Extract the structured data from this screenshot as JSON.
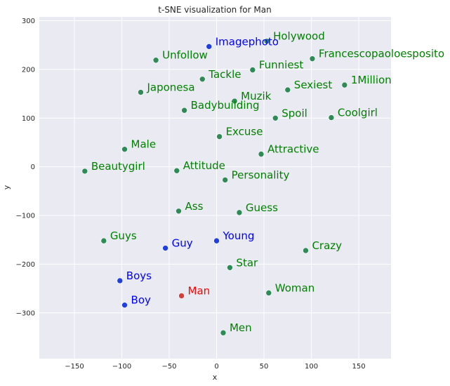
{
  "chart_data": {
    "type": "scatter",
    "title": "t-SNE visualization for Man",
    "xlabel": "x",
    "ylabel": "y",
    "xlim": [
      -187,
      184
    ],
    "ylim": [
      -394,
      308
    ],
    "xticks": [
      -150,
      -100,
      -50,
      0,
      50,
      100,
      150
    ],
    "yticks": [
      -300,
      -200,
      -100,
      0,
      100,
      200,
      300
    ],
    "grid": true,
    "colors": {
      "background": "#eaeaf2",
      "grid": "#ffffff",
      "green_point": "#2e8b57",
      "green_label": "#008000",
      "blue_point": "#1f3fe0",
      "blue_label": "#0000ff",
      "red_point": "#d43f3a",
      "red_label": "#ff0000"
    },
    "points": [
      {
        "label": "Holywood",
        "x": 53,
        "y": 258,
        "color": "green"
      },
      {
        "label": "Imagephoto",
        "x": -8,
        "y": 247,
        "color": "blue"
      },
      {
        "label": "Unfollow",
        "x": -64,
        "y": 219,
        "color": "green"
      },
      {
        "label": "Francescopaoloesposito",
        "x": 101,
        "y": 222,
        "color": "green"
      },
      {
        "label": "Funniest",
        "x": 38,
        "y": 199,
        "color": "green"
      },
      {
        "label": "Tackle",
        "x": -15,
        "y": 180,
        "color": "green"
      },
      {
        "label": "1Million",
        "x": 135,
        "y": 168,
        "color": "green"
      },
      {
        "label": "Sexiest",
        "x": 75,
        "y": 158,
        "color": "green"
      },
      {
        "label": "Japonesa",
        "x": -80,
        "y": 153,
        "color": "green"
      },
      {
        "label": "Muzik",
        "x": 19,
        "y": 135,
        "color": "green"
      },
      {
        "label": "Badybuilding",
        "x": -34,
        "y": 116,
        "color": "green"
      },
      {
        "label": "Spoil",
        "x": 62,
        "y": 100,
        "color": "green"
      },
      {
        "label": "Coolgirl",
        "x": 121,
        "y": 101,
        "color": "green"
      },
      {
        "label": "Excuse",
        "x": 3,
        "y": 62,
        "color": "green"
      },
      {
        "label": "Male",
        "x": -97,
        "y": 36,
        "color": "green"
      },
      {
        "label": "Attractive",
        "x": 47,
        "y": 26,
        "color": "green"
      },
      {
        "label": "Beautygirl",
        "x": -139,
        "y": -9,
        "color": "green"
      },
      {
        "label": "Attitude",
        "x": -42,
        "y": -8,
        "color": "green"
      },
      {
        "label": "Personality",
        "x": 9,
        "y": -27,
        "color": "green"
      },
      {
        "label": "Ass",
        "x": -40,
        "y": -91,
        "color": "green"
      },
      {
        "label": "Guess",
        "x": 24,
        "y": -94,
        "color": "green"
      },
      {
        "label": "Guys",
        "x": -119,
        "y": -152,
        "color": "green"
      },
      {
        "label": "Young",
        "x": 0,
        "y": -152,
        "color": "blue"
      },
      {
        "label": "Guy",
        "x": -54,
        "y": -167,
        "color": "blue"
      },
      {
        "label": "Crazy",
        "x": 94,
        "y": -172,
        "color": "green"
      },
      {
        "label": "Star",
        "x": 14,
        "y": -207,
        "color": "green"
      },
      {
        "label": "Boys",
        "x": -102,
        "y": -234,
        "color": "blue"
      },
      {
        "label": "Woman",
        "x": 55,
        "y": -259,
        "color": "green"
      },
      {
        "label": "Man",
        "x": -37,
        "y": -265,
        "color": "red"
      },
      {
        "label": "Boy",
        "x": -97,
        "y": -284,
        "color": "blue"
      },
      {
        "label": "Men",
        "x": 7,
        "y": -341,
        "color": "green"
      }
    ]
  }
}
